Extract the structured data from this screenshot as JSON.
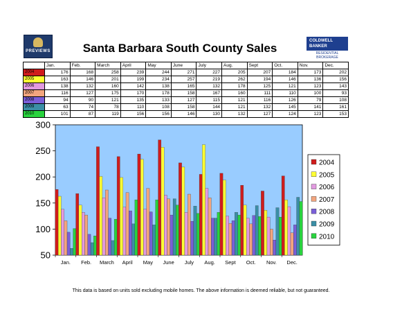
{
  "header": {
    "title": "Santa Barbara South County Sales",
    "logo_left_text": "PREVIEWS",
    "logo_right_line1": "COLDWELL",
    "logo_right_line2": "BANKER",
    "logo_right_line3": "RESIDENTIAL BROKERAGE"
  },
  "footnote": "This data is based on units sold excluding mobile homes. The above information is deemed reliable, but not guaranteed.",
  "table": {
    "columns": [
      "Jan.",
      "Feb.",
      "March",
      "April",
      "May",
      "June",
      "July",
      "Aug.",
      "Sept",
      "Oct.",
      "Nov.",
      "Dec."
    ]
  },
  "colors": {
    "plot_bg": "#99ccff",
    "2004": "#d01c1c",
    "2005": "#ffff33",
    "2006": "#e29ae0",
    "2007": "#f3a57e",
    "2008": "#7a5fd8",
    "2009": "#3b8fa6",
    "2010": "#29d33e"
  },
  "chart_data": {
    "type": "bar",
    "title": "",
    "xlabel": "",
    "ylabel": "",
    "ylim": [
      50,
      300
    ],
    "yticks": [
      50,
      100,
      150,
      200,
      250,
      300
    ],
    "grid": false,
    "legend_position": "right",
    "categories": [
      "Jan.",
      "Feb.",
      "March",
      "April",
      "May",
      "June",
      "July",
      "Aug.",
      "Sept",
      "Oct.",
      "Nov.",
      "Dec."
    ],
    "series": [
      {
        "name": "2004",
        "values": [
          176,
          168,
          258,
          239,
          244,
          271,
          227,
          205,
          207,
          184,
          173,
          202
        ]
      },
      {
        "name": "2005",
        "values": [
          163,
          146,
          201,
          199,
          234,
          257,
          219,
          262,
          194,
          146,
          136,
          156
        ]
      },
      {
        "name": "2006",
        "values": [
          138,
          132,
          160,
          142,
          138,
          165,
          132,
          178,
          125,
          121,
          123,
          143
        ]
      },
      {
        "name": "2007",
        "values": [
          116,
          127,
          175,
          170,
          178,
          158,
          167,
          160,
          111,
          110,
          100,
          93
        ]
      },
      {
        "name": "2008",
        "values": [
          94,
          90,
          121,
          135,
          133,
          127,
          115,
          121,
          116,
          126,
          79,
          108
        ]
      },
      {
        "name": "2009",
        "values": [
          63,
          74,
          78,
          110,
          108,
          158,
          144,
          121,
          132,
          145,
          141,
          161
        ]
      },
      {
        "name": "2010",
        "values": [
          101,
          87,
          119,
          156,
          156,
          146,
          130,
          132,
          127,
          124,
          123,
          153
        ]
      }
    ]
  }
}
